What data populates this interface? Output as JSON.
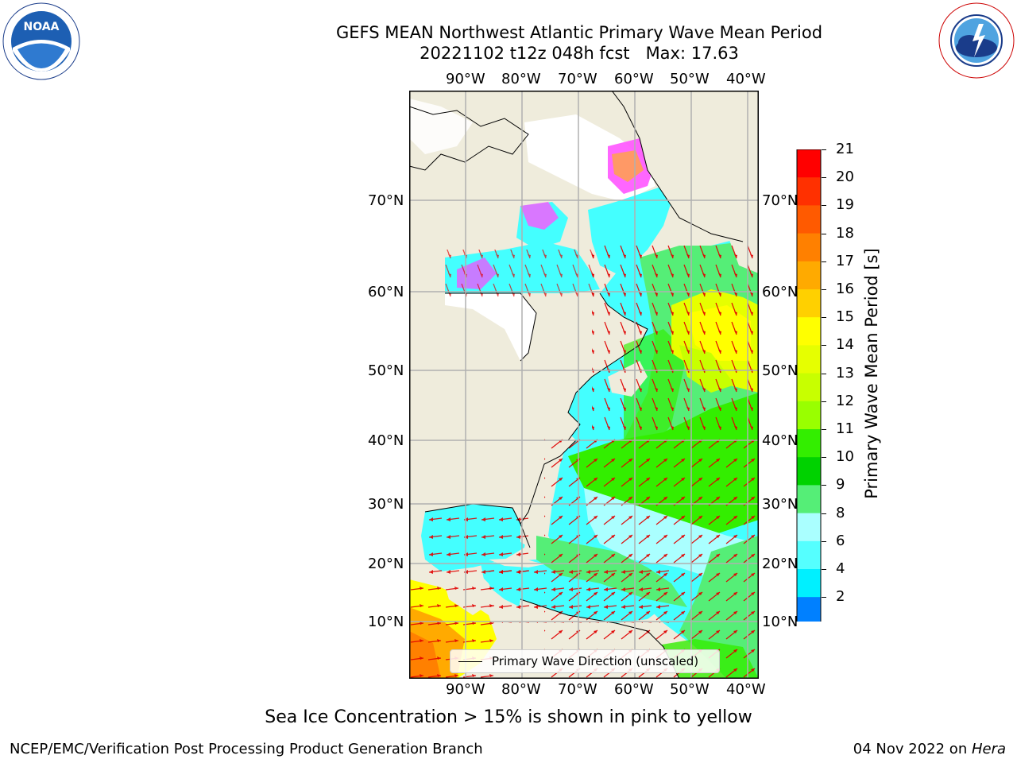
{
  "header": {
    "title_line1": "GEFS MEAN Northwest Atlantic Primary Wave Mean Period",
    "title_line2": "20221102 t12z 048h fcst   Max: 17.63"
  },
  "logos": {
    "left": {
      "label": "NOAA",
      "ring_text": "NATIONAL OCEANIC AND ATMOSPHERIC ADMINISTRATION · U.S. DEPARTMENT OF COMMERCE"
    },
    "right": {
      "ring_text": "NATIONAL WEATHER SERVICE"
    }
  },
  "map": {
    "lon_ticks": [
      "90°W",
      "80°W",
      "70°W",
      "60°W",
      "50°W",
      "40°W"
    ],
    "lat_ticks_left": [
      "70°N",
      "60°N",
      "50°N",
      "40°N",
      "30°N",
      "20°N",
      "10°N"
    ],
    "lat_ticks_right": [
      "70°N",
      "60°N",
      "50°N",
      "40°N",
      "30°N",
      "20°N",
      "10°N"
    ],
    "legend_label": "Primary Wave Direction (unscaled)",
    "colors": {
      "land": "#efecdc",
      "ice": "#ffffff",
      "arrow": "#e00000",
      "grid": "#b0b0b0"
    }
  },
  "colorbar": {
    "label": "Primary Wave Mean Period [s]",
    "ticks": [
      "21",
      "20",
      "19",
      "18",
      "17",
      "16",
      "15",
      "14",
      "13",
      "12",
      "11",
      "10",
      "9",
      "8",
      "6",
      "4",
      "2"
    ],
    "colors": [
      "#ff0000",
      "#ff3000",
      "#ff5a00",
      "#ff8000",
      "#ffaa00",
      "#ffd000",
      "#ffff00",
      "#e6ff00",
      "#c8ff00",
      "#99ff00",
      "#33ee00",
      "#00d200",
      "#55ee77",
      "#aaffff",
      "#55ffff",
      "#00f0ff",
      "#0080ff"
    ],
    "extend_color": "#0000ff"
  },
  "caption": "Sea Ice Concentration > 15% is shown in pink to yellow",
  "footer": {
    "left": "NCEP/EMC/Verification Post Processing Product Generation Branch",
    "date": "04 Nov 2022 on ",
    "host": "Hera"
  }
}
